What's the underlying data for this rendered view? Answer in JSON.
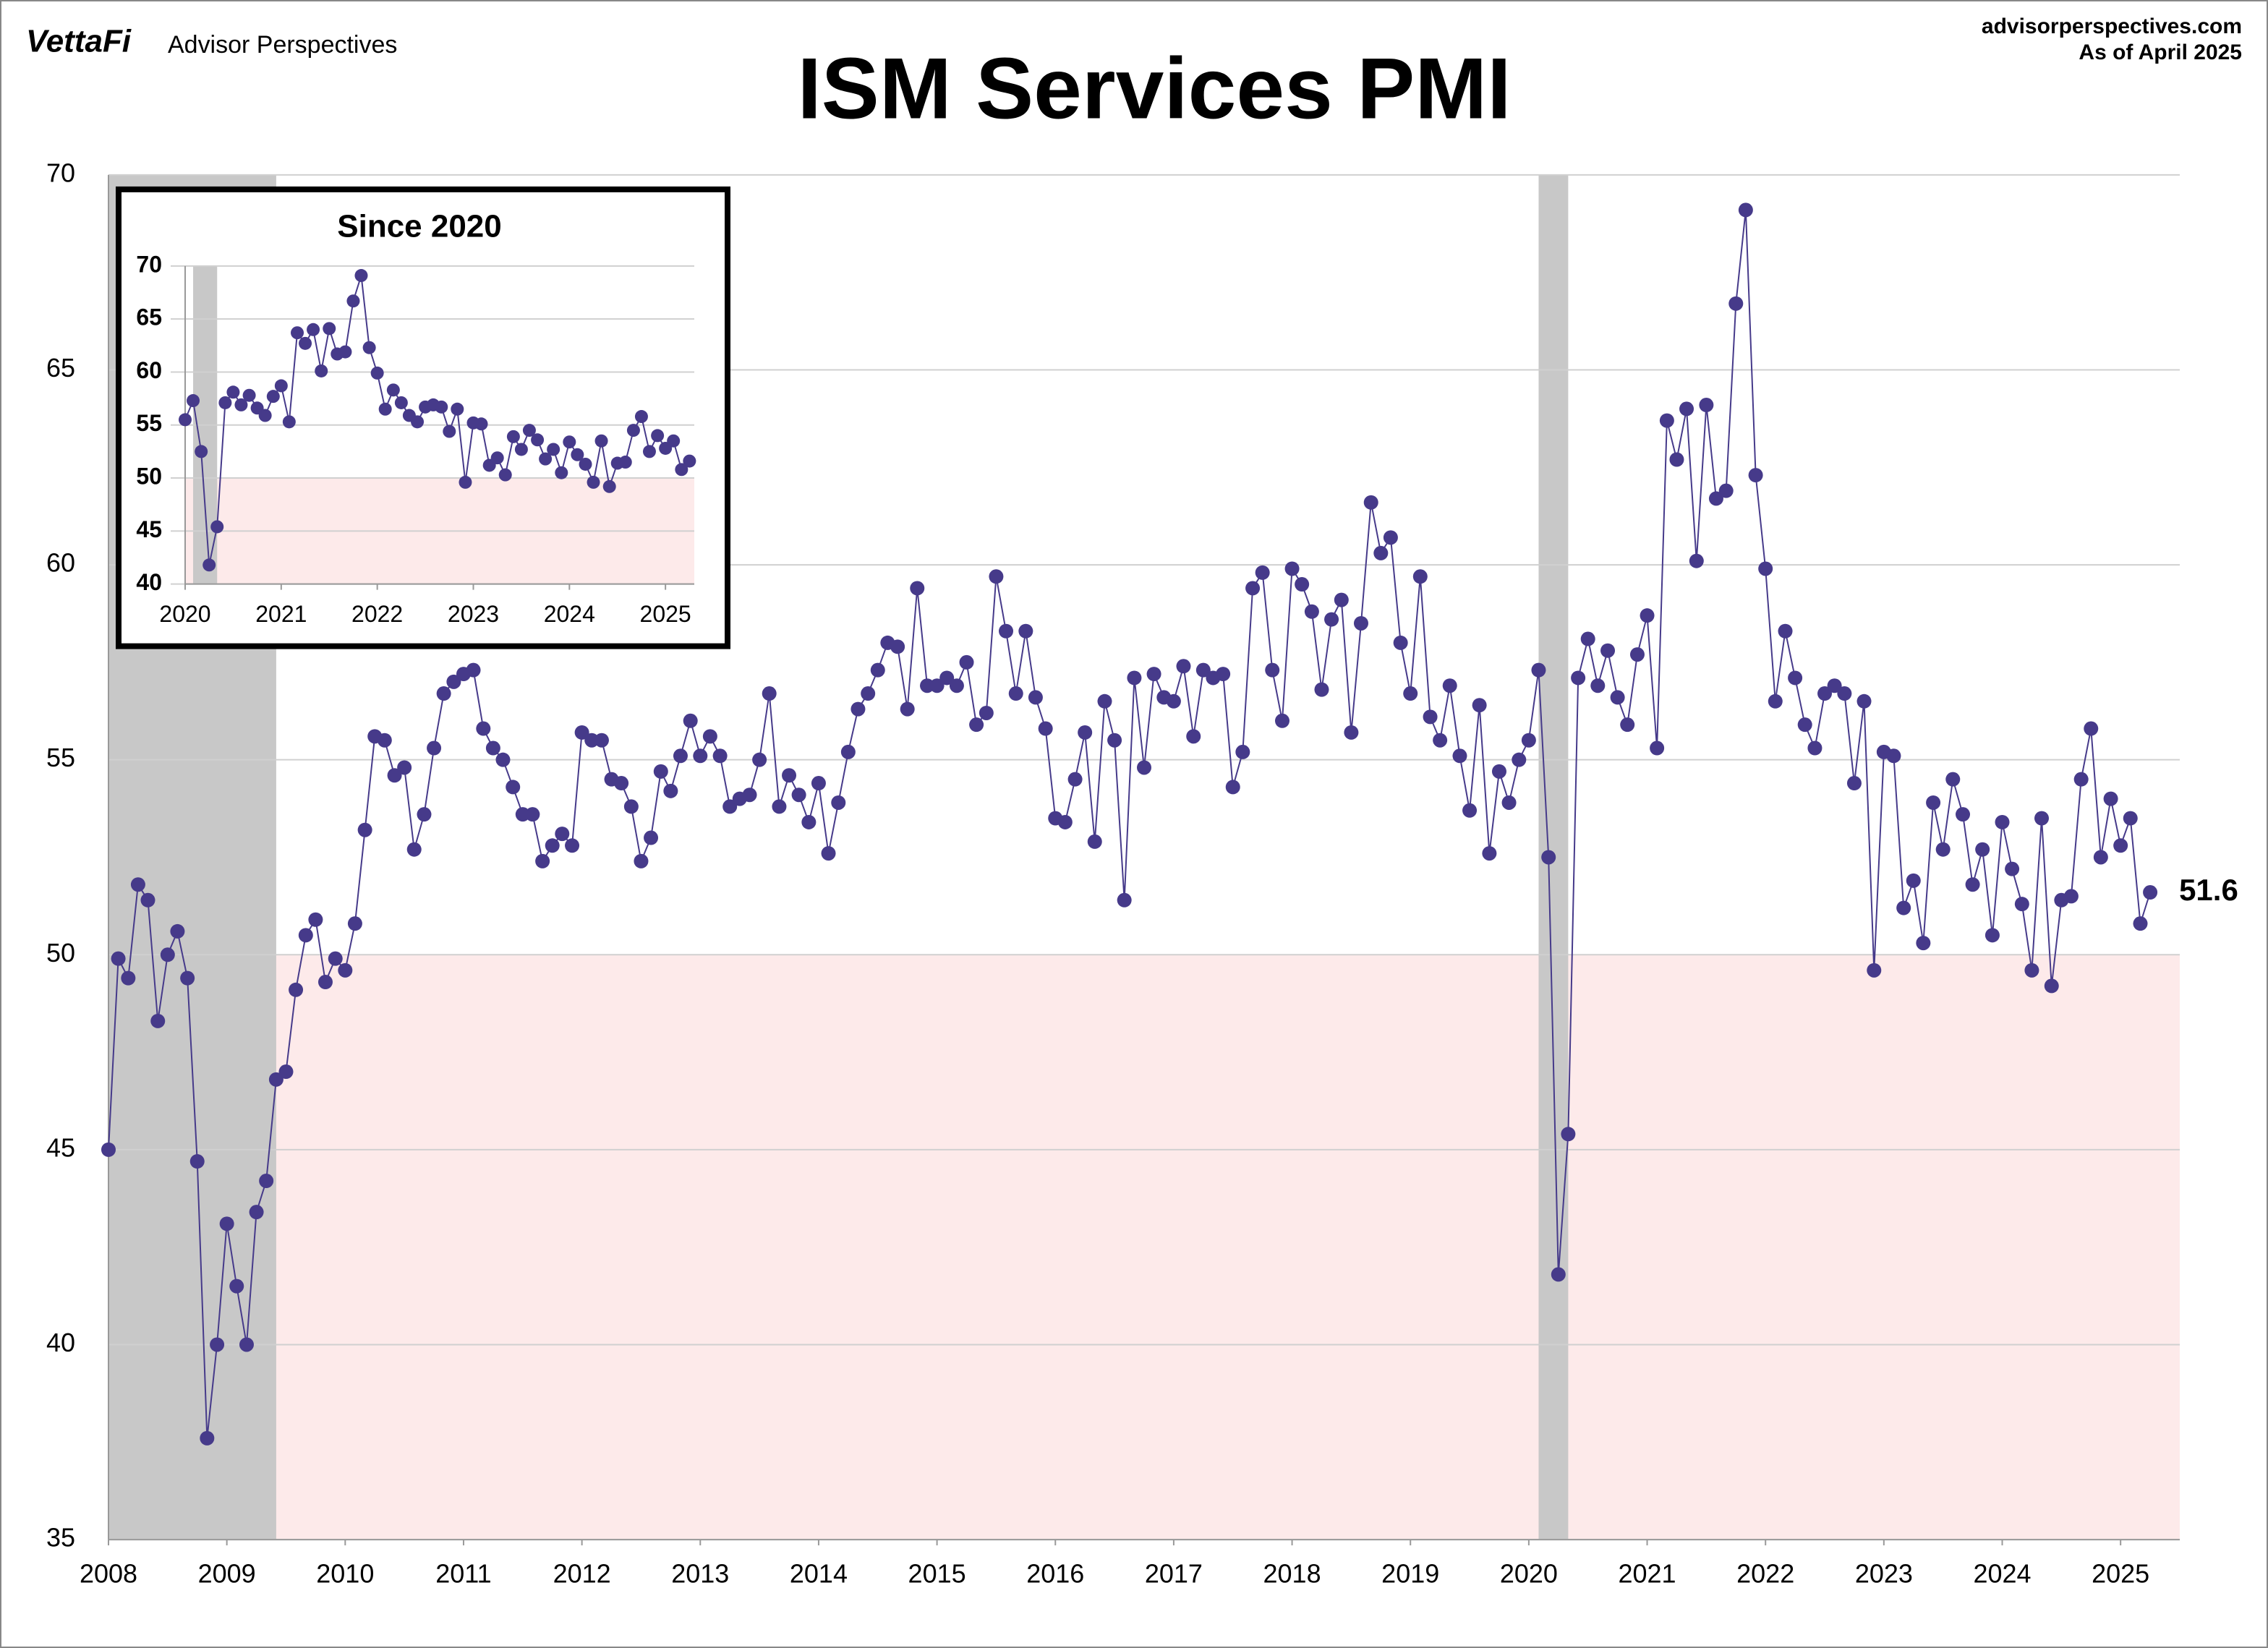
{
  "chart_data": [
    {
      "type": "line",
      "title": "ISM Services PMI",
      "logo": "VettaFi",
      "publisher": "Advisor Perspectives",
      "website": "advisorperspectives.com",
      "date_note": "As of April 2025",
      "xlim": [
        2008,
        2025.5
      ],
      "ylim": [
        35,
        70
      ],
      "xticks": [
        2008,
        2009,
        2010,
        2011,
        2012,
        2013,
        2014,
        2015,
        2016,
        2017,
        2018,
        2019,
        2020,
        2021,
        2022,
        2023,
        2024,
        2025
      ],
      "yticks": [
        35,
        40,
        45,
        50,
        55,
        60,
        65,
        70
      ],
      "grid": true,
      "contraction_below": 50,
      "contraction_color": "#fdeaea",
      "shaded_periods": [
        [
          2008,
          2009.417
        ],
        [
          2020.083,
          2020.333
        ]
      ],
      "shade_color": "#c8c8c8",
      "last_value_label": true,
      "x": [
        2008,
        2008.083,
        2008.167,
        2008.25,
        2008.333,
        2008.417,
        2008.5,
        2008.583,
        2008.667,
        2008.75,
        2008.833,
        2008.917,
        2009,
        2009.083,
        2009.167,
        2009.25,
        2009.333,
        2009.417,
        2009.5,
        2009.583,
        2009.667,
        2009.75,
        2009.833,
        2009.917,
        2010,
        2010.083,
        2010.167,
        2010.25,
        2010.333,
        2010.417,
        2010.5,
        2010.583,
        2010.667,
        2010.75,
        2010.833,
        2010.917,
        2011,
        2011.083,
        2011.167,
        2011.25,
        2011.333,
        2011.417,
        2011.5,
        2011.583,
        2011.667,
        2011.75,
        2011.833,
        2011.917,
        2012,
        2012.083,
        2012.167,
        2012.25,
        2012.333,
        2012.417,
        2012.5,
        2012.583,
        2012.667,
        2012.75,
        2012.833,
        2012.917,
        2013,
        2013.083,
        2013.167,
        2013.25,
        2013.333,
        2013.417,
        2013.5,
        2013.583,
        2013.667,
        2013.75,
        2013.833,
        2013.917,
        2014,
        2014.083,
        2014.167,
        2014.25,
        2014.333,
        2014.417,
        2014.5,
        2014.583,
        2014.667,
        2014.75,
        2014.833,
        2014.917,
        2015,
        2015.083,
        2015.167,
        2015.25,
        2015.333,
        2015.417,
        2015.5,
        2015.583,
        2015.667,
        2015.75,
        2015.833,
        2015.917,
        2016,
        2016.083,
        2016.167,
        2016.25,
        2016.333,
        2016.417,
        2016.5,
        2016.583,
        2016.667,
        2016.75,
        2016.833,
        2016.917,
        2017,
        2017.083,
        2017.167,
        2017.25,
        2017.333,
        2017.417,
        2017.5,
        2017.583,
        2017.667,
        2017.75,
        2017.833,
        2017.917,
        2018,
        2018.083,
        2018.167,
        2018.25,
        2018.333,
        2018.417,
        2018.5,
        2018.583,
        2018.667,
        2018.75,
        2018.833,
        2018.917,
        2019,
        2019.083,
        2019.167,
        2019.25,
        2019.333,
        2019.417,
        2019.5,
        2019.583,
        2019.667,
        2019.75,
        2019.833,
        2019.917,
        2020,
        2020.083,
        2020.167,
        2020.25,
        2020.333,
        2020.417,
        2020.5,
        2020.583,
        2020.667,
        2020.75,
        2020.833,
        2020.917,
        2021,
        2021.083,
        2021.167,
        2021.25,
        2021.333,
        2021.417,
        2021.5,
        2021.583,
        2021.667,
        2021.75,
        2021.833,
        2021.917,
        2022,
        2022.083,
        2022.167,
        2022.25,
        2022.333,
        2022.417,
        2022.5,
        2022.583,
        2022.667,
        2022.75,
        2022.833,
        2022.917,
        2023,
        2023.083,
        2023.167,
        2023.25,
        2023.333,
        2023.417,
        2023.5,
        2023.583,
        2023.667,
        2023.75,
        2023.833,
        2023.917,
        2024,
        2024.083,
        2024.167,
        2024.25,
        2024.333,
        2024.417,
        2024.5,
        2024.583,
        2024.667,
        2024.75,
        2024.833,
        2024.917,
        2025,
        2025.083,
        2025.167,
        2025.25
      ],
      "series": [
        {
          "name": "ISM Services PMI",
          "color": "#463a8a",
          "values": [
            45.0,
            49.9,
            49.4,
            51.8,
            51.4,
            48.3,
            50.0,
            50.6,
            49.4,
            44.7,
            37.6,
            40.0,
            43.1,
            41.5,
            40.0,
            43.4,
            44.2,
            46.8,
            47.0,
            49.1,
            50.5,
            50.9,
            49.3,
            49.9,
            49.6,
            50.8,
            53.2,
            55.6,
            55.5,
            54.6,
            54.8,
            52.7,
            53.6,
            55.3,
            56.7,
            57.0,
            57.2,
            57.3,
            55.8,
            55.3,
            55.0,
            54.3,
            53.6,
            53.6,
            52.4,
            52.8,
            53.1,
            52.8,
            55.7,
            55.5,
            55.5,
            54.5,
            54.4,
            53.8,
            52.4,
            53.0,
            54.7,
            54.2,
            55.1,
            56.0,
            55.1,
            55.6,
            55.1,
            53.8,
            54.0,
            54.1,
            55.0,
            56.7,
            53.8,
            54.6,
            54.1,
            53.4,
            54.4,
            52.6,
            53.9,
            55.2,
            56.3,
            56.7,
            57.3,
            58.0,
            57.9,
            56.3,
            59.4,
            56.9,
            56.9,
            57.1,
            56.9,
            57.5,
            55.9,
            56.2,
            59.7,
            58.3,
            56.7,
            58.3,
            56.6,
            55.8,
            53.5,
            53.4,
            54.5,
            55.7,
            52.9,
            56.5,
            55.5,
            51.4,
            57.1,
            54.8,
            57.2,
            56.6,
            56.5,
            57.4,
            55.6,
            57.3,
            57.1,
            57.2,
            54.3,
            55.2,
            59.4,
            59.8,
            57.3,
            56.0,
            59.9,
            59.5,
            58.8,
            56.8,
            58.6,
            59.1,
            55.7,
            58.5,
            61.6,
            60.3,
            60.7,
            58.0,
            56.7,
            59.7,
            56.1,
            55.5,
            56.9,
            55.1,
            53.7,
            56.4,
            52.6,
            54.7,
            53.9,
            55.0,
            55.5,
            57.3,
            52.5,
            41.8,
            45.4,
            57.1,
            58.1,
            56.9,
            57.8,
            56.6,
            55.9,
            57.7,
            58.7,
            55.3,
            63.7,
            62.7,
            64.0,
            60.1,
            64.1,
            61.7,
            61.9,
            66.7,
            69.1,
            62.3,
            59.9,
            56.5,
            58.3,
            57.1,
            55.9,
            55.3,
            56.7,
            56.9,
            56.7,
            54.4,
            56.5,
            49.6,
            55.2,
            55.1,
            51.2,
            51.9,
            50.3,
            53.9,
            52.7,
            54.5,
            53.6,
            51.8,
            52.7,
            50.5,
            53.4,
            52.2,
            51.3,
            49.6,
            53.5,
            49.2,
            51.4,
            51.5,
            54.5,
            55.8,
            52.5,
            54.0,
            52.8,
            53.5,
            50.8,
            51.6
          ]
        }
      ]
    },
    {
      "type": "line",
      "title": "Since 2020",
      "xlim": [
        2020,
        2025.3
      ],
      "ylim": [
        40,
        70
      ],
      "xticks": [
        2020,
        2021,
        2022,
        2023,
        2024,
        2025
      ],
      "yticks": [
        40,
        45,
        50,
        55,
        60,
        65,
        70
      ],
      "grid": true,
      "contraction_below": 50,
      "contraction_color": "#fdeaea",
      "shaded_periods": [
        [
          2020.083,
          2020.333
        ]
      ],
      "shade_color": "#c8c8c8",
      "x": [
        2020,
        2020.083,
        2020.167,
        2020.25,
        2020.333,
        2020.417,
        2020.5,
        2020.583,
        2020.667,
        2020.75,
        2020.833,
        2020.917,
        2021,
        2021.083,
        2021.167,
        2021.25,
        2021.333,
        2021.417,
        2021.5,
        2021.583,
        2021.667,
        2021.75,
        2021.833,
        2021.917,
        2022,
        2022.083,
        2022.167,
        2022.25,
        2022.333,
        2022.417,
        2022.5,
        2022.583,
        2022.667,
        2022.75,
        2022.833,
        2022.917,
        2023,
        2023.083,
        2023.167,
        2023.25,
        2023.333,
        2023.417,
        2023.5,
        2023.583,
        2023.667,
        2023.75,
        2023.833,
        2023.917,
        2024,
        2024.083,
        2024.167,
        2024.25,
        2024.333,
        2024.417,
        2024.5,
        2024.583,
        2024.667,
        2024.75,
        2024.833,
        2024.917,
        2025,
        2025.083,
        2025.167,
        2025.25
      ],
      "series": [
        {
          "name": "ISM Services PMI",
          "color": "#463a8a",
          "values": [
            55.5,
            57.3,
            52.5,
            41.8,
            45.4,
            57.1,
            58.1,
            56.9,
            57.8,
            56.6,
            55.9,
            57.7,
            58.7,
            55.3,
            63.7,
            62.7,
            64.0,
            60.1,
            64.1,
            61.7,
            61.9,
            66.7,
            69.1,
            62.3,
            59.9,
            56.5,
            58.3,
            57.1,
            55.9,
            55.3,
            56.7,
            56.9,
            56.7,
            54.4,
            56.5,
            49.6,
            55.2,
            55.1,
            51.2,
            51.9,
            50.3,
            53.9,
            52.7,
            54.5,
            53.6,
            51.8,
            52.7,
            50.5,
            53.4,
            52.2,
            51.3,
            49.6,
            53.5,
            49.2,
            51.4,
            51.5,
            54.5,
            55.8,
            52.5,
            54.0,
            52.8,
            53.5,
            50.8,
            51.6
          ]
        }
      ]
    }
  ]
}
